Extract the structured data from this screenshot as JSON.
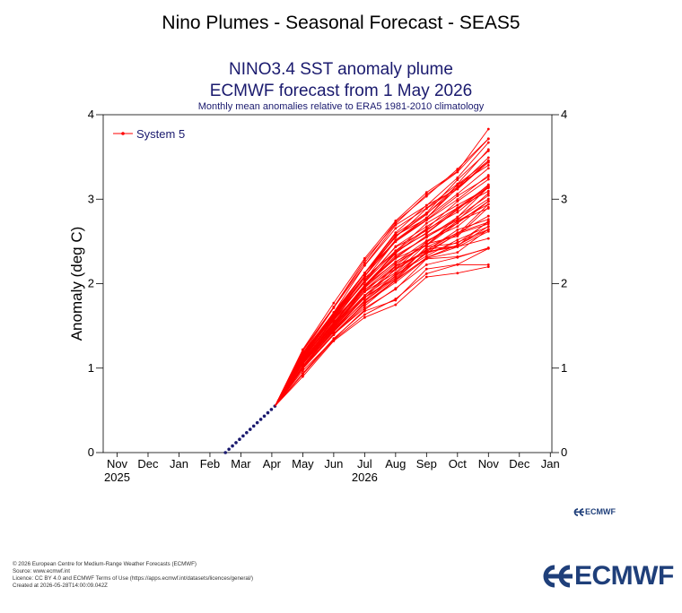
{
  "page": {
    "title": "Nino Plumes - Seasonal Forecast - SEAS5"
  },
  "chart_data": {
    "type": "line",
    "title": "NINO3.4 SST anomaly plume",
    "subtitle": "ECMWF forecast from 1 May 2026",
    "caption": "Monthly mean anomalies relative to ERA5 1981-2010 climatology",
    "ylabel": "Anomaly (deg C)",
    "xlabel": "",
    "ylim": [
      0,
      4
    ],
    "y_ticks": [
      "0",
      "1",
      "2",
      "3",
      "4"
    ],
    "x_ticks": [
      "Nov",
      "Dec",
      "Jan",
      "Feb",
      "Mar",
      "Apr",
      "May",
      "Jun",
      "Jul",
      "Aug",
      "Sep",
      "Oct",
      "Nov",
      "Dec",
      "Jan"
    ],
    "x_year_labels": [
      {
        "label": "2025",
        "under": "Nov"
      },
      {
        "label": "2026",
        "under": "Jul"
      }
    ],
    "grid": false,
    "legend": {
      "position": "top-left",
      "entries": [
        "System 5"
      ]
    },
    "colors": {
      "ensemble": "#ff0000",
      "observed": "#1a1a6e",
      "title": "#1a1a6e"
    },
    "observed": {
      "x_start": "2026-03-01",
      "x_end": "2026-04-30",
      "y_start": 0.0,
      "y_end": 0.55
    },
    "ensemble": {
      "name": "System 5",
      "months": [
        "May",
        "Jun",
        "Jul",
        "Aug",
        "Sep",
        "Oct",
        "Nov"
      ],
      "start_value": 0.55,
      "percentiles": {
        "min": [
          0.9,
          1.3,
          1.6,
          1.75,
          2.05,
          2.12,
          2.2
        ],
        "p10": [
          1.0,
          1.4,
          1.75,
          2.0,
          2.3,
          2.4,
          2.55
        ],
        "median": [
          1.08,
          1.52,
          1.95,
          2.3,
          2.5,
          2.75,
          3.0
        ],
        "p90": [
          1.17,
          1.65,
          2.15,
          2.6,
          2.9,
          3.2,
          3.5
        ],
        "max": [
          1.22,
          1.77,
          2.3,
          2.77,
          3.08,
          3.4,
          3.83
        ]
      },
      "members": 51
    }
  },
  "credits": {
    "lines": [
      "© 2026 European Centre for Medium-Range Weather Forecasts (ECMWF)",
      "Source: www.ecmwf.int",
      "Licence: CC BY 4.0 and ECMWF Terms of Use (https://apps.ecmwf.int/datasets/licences/general/)",
      "Created at 2026-05-28T14:00:09.042Z"
    ]
  },
  "logos": {
    "small": "ECMWF",
    "large": "ECMWF",
    "icon": "ecmwf-logo-icon"
  }
}
